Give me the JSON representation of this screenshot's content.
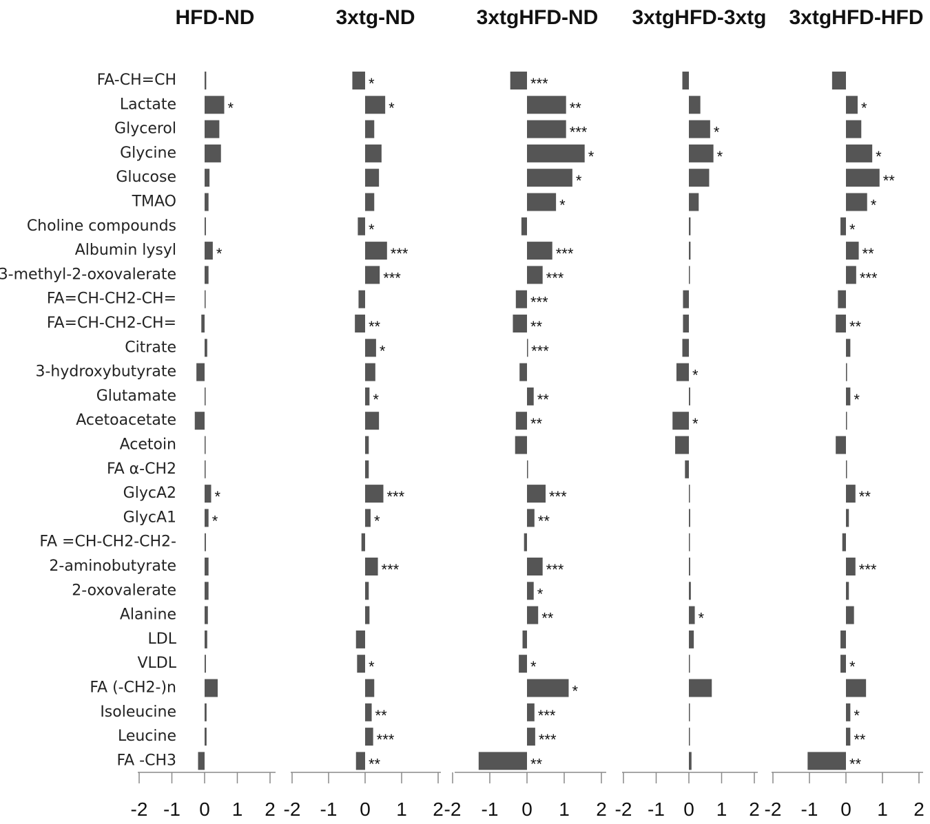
{
  "chart_data": {
    "type": "bar",
    "orientation": "horizontal",
    "bar_color": "#555555",
    "xlim": [
      -2,
      2
    ],
    "x_ticks": [
      "-2",
      "-1",
      "0",
      "1",
      "2"
    ],
    "categories": [
      "FA-CH=CH",
      "Lactate",
      "Glycerol",
      "Glycine",
      "Glucose",
      "TMAO",
      "Choline compounds",
      "Albumin lysyl",
      "3-methyl-2-oxovalerate",
      "FA=CH-CH2-CH=",
      "FA=CH-CH2-CH=",
      "Citrate",
      "3-hydroxybutyrate",
      "Glutamate",
      "Acetoacetate",
      "Acetoin",
      "FA α-CH2",
      "GlycA2",
      "GlycA1",
      "FA =CH-CH2-CH2-",
      "2-aminobutyrate",
      "2-oxovalerate",
      "Alanine",
      "LDL",
      "VLDL",
      "FA (-CH2-)n",
      "Isoleucine",
      "Leucine",
      "FA -CH3"
    ],
    "series": [
      {
        "name": "HFD-ND",
        "values": [
          0.05,
          0.6,
          0.45,
          0.5,
          0.15,
          0.12,
          0.04,
          0.25,
          0.12,
          0.03,
          -0.1,
          0.08,
          -0.25,
          0.02,
          -0.3,
          0.02,
          0.02,
          0.2,
          0.12,
          0.04,
          0.12,
          0.12,
          0.1,
          0.08,
          0.04,
          0.4,
          0.06,
          0.06,
          -0.2
        ],
        "sig": [
          "",
          "*",
          "",
          "",
          "",
          "",
          "",
          "*",
          "",
          "",
          "",
          "",
          "",
          "",
          "",
          "",
          "",
          "*",
          "*",
          "",
          "",
          "",
          "",
          "",
          "",
          "",
          "",
          "",
          ""
        ]
      },
      {
        "name": "3xtg-ND",
        "values": [
          -0.35,
          0.55,
          0.25,
          0.45,
          0.38,
          0.25,
          -0.2,
          0.6,
          0.4,
          -0.18,
          -0.28,
          0.3,
          0.28,
          0.12,
          0.38,
          0.1,
          0.1,
          0.5,
          0.15,
          -0.1,
          0.35,
          0.1,
          0.12,
          -0.25,
          -0.22,
          0.25,
          0.18,
          0.22,
          -0.25
        ],
        "sig": [
          "*",
          "*",
          "",
          "",
          "",
          "",
          "*",
          "***",
          "***",
          "",
          "**",
          "*",
          "",
          "*",
          "",
          "",
          "",
          "***",
          "*",
          "",
          "***",
          "",
          "",
          "",
          "*",
          "",
          "**",
          "***",
          "**"
        ]
      },
      {
        "name": "3xtgHFD-ND",
        "values": [
          -0.45,
          1.05,
          1.05,
          1.55,
          1.22,
          0.78,
          -0.15,
          0.68,
          0.42,
          -0.3,
          -0.38,
          0.02,
          -0.2,
          0.18,
          -0.3,
          -0.32,
          0.0,
          0.5,
          0.2,
          -0.08,
          0.42,
          0.18,
          0.3,
          -0.12,
          -0.22,
          1.12,
          0.2,
          0.22,
          -1.3
        ],
        "sig": [
          "***",
          "**",
          "***",
          "*",
          "*",
          "*",
          "",
          "***",
          "***",
          "***",
          "**",
          "***",
          "",
          "**",
          "**",
          "",
          "",
          "***",
          "**",
          "",
          "***",
          "*",
          "**",
          "",
          "*",
          "*",
          "***",
          "***",
          "**"
        ]
      },
      {
        "name": "3xtgHFD-3xtg",
        "values": [
          -0.2,
          0.35,
          0.65,
          0.75,
          0.62,
          0.3,
          0.05,
          0.05,
          0.03,
          -0.18,
          -0.18,
          -0.2,
          -0.38,
          0.04,
          -0.5,
          -0.42,
          -0.12,
          0.02,
          0.04,
          0.03,
          0.04,
          0.06,
          0.18,
          0.15,
          0.0,
          0.7,
          0.02,
          0.02,
          0.08
        ],
        "sig": [
          "",
          "",
          "*",
          "*",
          "",
          "",
          "",
          "",
          "",
          "",
          "",
          "",
          "*",
          "",
          "*",
          "",
          "",
          "",
          "",
          "",
          "",
          "",
          "*",
          "",
          "",
          "",
          "",
          "",
          ""
        ]
      },
      {
        "name": "3xtgHFD-HFD",
        "values": [
          -0.38,
          0.32,
          0.42,
          0.72,
          0.92,
          0.58,
          -0.15,
          0.35,
          0.28,
          -0.22,
          -0.28,
          0.12,
          0.03,
          0.12,
          0.02,
          -0.28,
          0.02,
          0.26,
          0.08,
          -0.1,
          0.26,
          0.08,
          0.22,
          -0.15,
          -0.15,
          0.55,
          0.12,
          0.12,
          -1.05
        ],
        "sig": [
          "",
          "*",
          "",
          "*",
          "**",
          "*",
          "*",
          "**",
          "***",
          "",
          "**",
          "",
          "",
          "*",
          "",
          "",
          "",
          "**",
          "",
          "",
          "***",
          "",
          "",
          "",
          "*",
          "",
          "*",
          "**",
          "**"
        ]
      }
    ]
  }
}
